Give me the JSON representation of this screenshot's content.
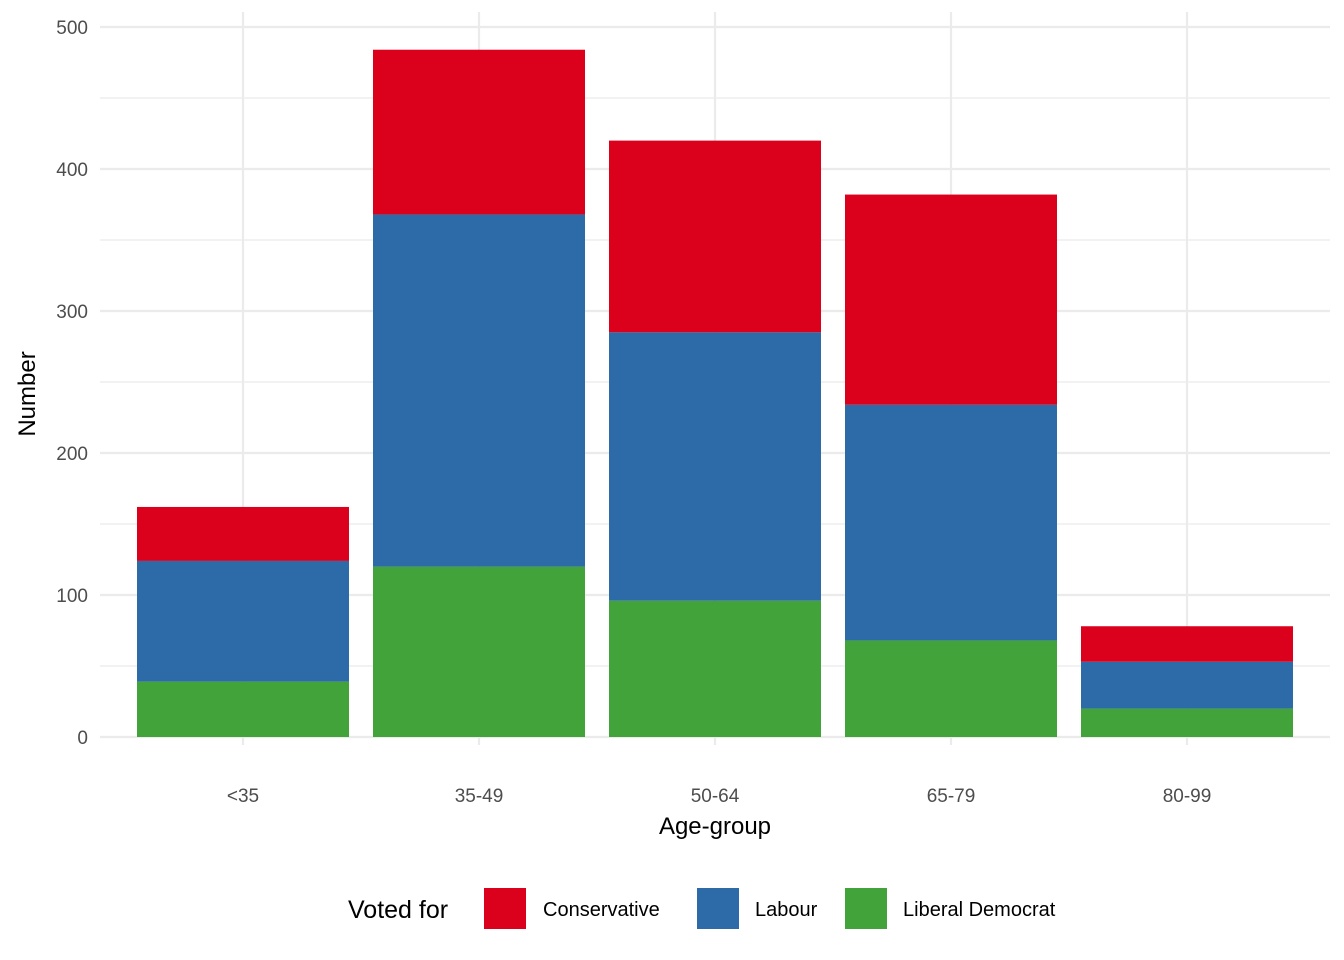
{
  "chart_data": {
    "type": "bar",
    "stacked": true,
    "title": "",
    "xlabel": "Age-group",
    "ylabel": "Number",
    "categories": [
      "<35",
      "35-49",
      "50-64",
      "65-79",
      "80-99"
    ],
    "series": [
      {
        "name": "Liberal Democrat",
        "color": "#41a33a",
        "values": [
          39,
          120,
          96,
          68,
          20
        ]
      },
      {
        "name": "Labour",
        "color": "#2d6ba8",
        "values": [
          85,
          248,
          189,
          166,
          33
        ]
      },
      {
        "name": "Conservative",
        "color": "#db001b",
        "values": [
          38,
          116,
          135,
          148,
          25
        ]
      }
    ],
    "ylim": [
      0,
      500
    ],
    "yticks": [
      "0",
      "100",
      "200",
      "300",
      "400",
      "500"
    ],
    "grid": true,
    "legend": {
      "title": "Voted for",
      "position": "bottom",
      "order": [
        "Conservative",
        "Labour",
        "Liberal Democrat"
      ]
    },
    "grid_color": "#ebebeb"
  }
}
